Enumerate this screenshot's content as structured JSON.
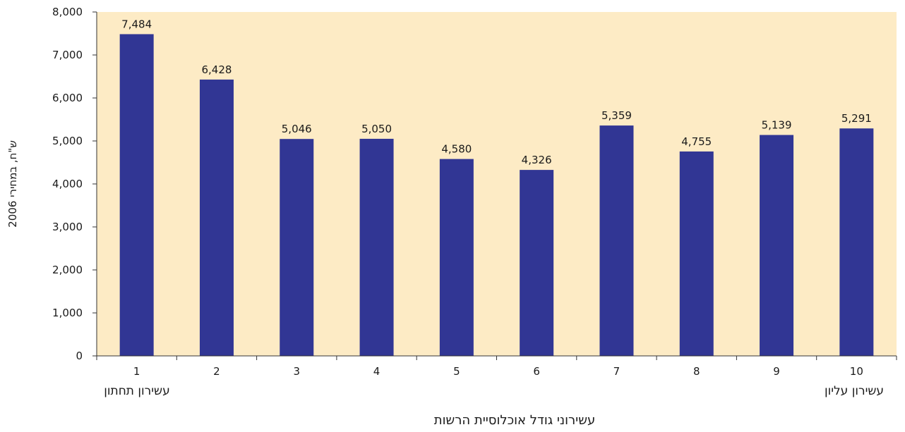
{
  "chart_data": {
    "type": "bar",
    "categories": [
      "1",
      "2",
      "3",
      "4",
      "5",
      "6",
      "7",
      "8",
      "9",
      "10"
    ],
    "values": [
      7484,
      6428,
      5046,
      5050,
      4580,
      4326,
      5359,
      4755,
      5139,
      5291
    ],
    "value_labels": [
      "7,484",
      "6,428",
      "5,046",
      "5,050",
      "4,580",
      "4,326",
      "5,359",
      "4,755",
      "5,139",
      "5,291"
    ],
    "yticks": [
      0,
      1000,
      2000,
      3000,
      4000,
      5000,
      6000,
      7000,
      8000
    ],
    "ytick_labels": [
      "0",
      "1,000",
      "2,000",
      "3,000",
      "4,000",
      "5,000",
      "6,000",
      "7,000",
      "8,000"
    ],
    "ylim": [
      0,
      8000
    ],
    "xlabel": "עשירוני גודל אוכלוסיית הרשות",
    "ylabel": "ש\"ח, במחירי 2006",
    "x_end_labels": {
      "low": "עשירון תחתון",
      "high": "עשירון  עליון"
    },
    "grid": false,
    "colors": {
      "bar": "#313694",
      "plot_background": "#fdebc5",
      "axis": "#333333"
    }
  }
}
